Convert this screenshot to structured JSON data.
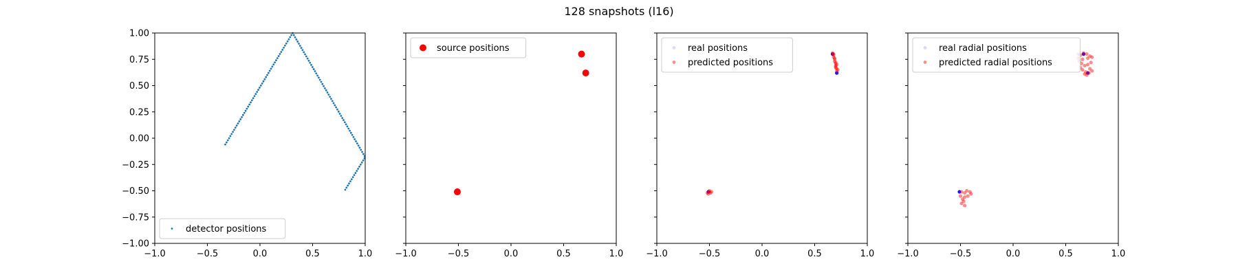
{
  "figure": {
    "title": "128 snapshots (l16)"
  },
  "chart_data": [
    {
      "type": "scatter",
      "xlim": [
        -1.0,
        1.0
      ],
      "ylim": [
        -1.0,
        1.0
      ],
      "x_ticks": [
        -1.0,
        -0.5,
        0.0,
        0.5,
        1.0
      ],
      "y_ticks": [
        -1.0,
        -0.75,
        -0.5,
        -0.25,
        0.0,
        0.25,
        0.5,
        0.75,
        1.0
      ],
      "x_tick_labels": [
        "−1.0",
        "−0.5",
        "0.0",
        "0.5",
        "1.0"
      ],
      "y_tick_labels": [
        "−1.00",
        "−0.75",
        "−0.50",
        "−0.25",
        "0.00",
        "0.25",
        "0.50",
        "0.75",
        "1.00"
      ],
      "legend_position": "lower-left",
      "series": [
        {
          "name": "detector positions",
          "color": "#1f77b4",
          "marker": "small-dot",
          "path_vertices": [
            [
              -0.33,
              -0.06
            ],
            [
              0.31,
              1.0
            ],
            [
              1.0,
              -0.18
            ],
            [
              0.81,
              -0.49
            ]
          ],
          "point_count": 128
        }
      ]
    },
    {
      "type": "scatter",
      "xlim": [
        -1.0,
        1.0
      ],
      "ylim": [
        -1.0,
        1.0
      ],
      "x_ticks": [
        -1.0,
        -0.5,
        0.0,
        0.5,
        1.0
      ],
      "x_tick_labels": [
        "−1.0",
        "−0.5",
        "0.0",
        "0.5",
        "1.0"
      ],
      "legend_position": "upper-left",
      "series": [
        {
          "name": "source positions",
          "color": "#ff0000",
          "marker": "large-dot",
          "points": [
            [
              -0.51,
              -0.51
            ],
            [
              0.67,
              0.8
            ],
            [
              0.71,
              0.62
            ]
          ]
        }
      ]
    },
    {
      "type": "scatter",
      "xlim": [
        -1.0,
        1.0
      ],
      "ylim": [
        -1.0,
        1.0
      ],
      "x_ticks": [
        -1.0,
        -0.5,
        0.0,
        0.5,
        1.0
      ],
      "x_tick_labels": [
        "−1.0",
        "−0.5",
        "0.0",
        "0.5",
        "1.0"
      ],
      "legend_position": "upper-left",
      "series": [
        {
          "name": "real positions",
          "color": "#0000ff",
          "points": [
            [
              -0.51,
              -0.51
            ],
            [
              0.67,
              0.8
            ],
            [
              0.71,
              0.62
            ]
          ]
        },
        {
          "name": "predicted positions",
          "color": "#ff0000",
          "points": [
            [
              -0.52,
              -0.52
            ],
            [
              -0.5,
              -0.51
            ],
            [
              -0.49,
              -0.52
            ],
            [
              -0.51,
              -0.53
            ],
            [
              -0.5,
              -0.5
            ],
            [
              -0.48,
              -0.51
            ],
            [
              0.67,
              0.81
            ],
            [
              0.68,
              0.79
            ],
            [
              0.68,
              0.77
            ],
            [
              0.69,
              0.75
            ],
            [
              0.69,
              0.73
            ],
            [
              0.7,
              0.71
            ],
            [
              0.7,
              0.69
            ],
            [
              0.7,
              0.68
            ],
            [
              0.71,
              0.66
            ],
            [
              0.71,
              0.64
            ],
            [
              0.72,
              0.65
            ],
            [
              0.69,
              0.76
            ],
            [
              0.7,
              0.72
            ],
            [
              0.71,
              0.7
            ],
            [
              0.68,
              0.8
            ],
            [
              0.7,
              0.67
            ]
          ]
        }
      ]
    },
    {
      "type": "scatter",
      "xlim": [
        -1.0,
        1.0
      ],
      "ylim": [
        -1.0,
        1.0
      ],
      "x_ticks": [
        -1.0,
        -0.5,
        0.0,
        0.5,
        1.0
      ],
      "x_tick_labels": [
        "−1.0",
        "−0.5",
        "0.0",
        "0.5",
        "1.0"
      ],
      "legend_position": "upper-left",
      "series": [
        {
          "name": "real radial positions",
          "color": "#0000ff",
          "points": [
            [
              -0.51,
              -0.51
            ],
            [
              0.67,
              0.8
            ],
            [
              0.71,
              0.62
            ]
          ]
        },
        {
          "name": "predicted radial positions",
          "color": "#ff0000",
          "points": [
            [
              -0.49,
              -0.51
            ],
            [
              -0.46,
              -0.52
            ],
            [
              -0.44,
              -0.5
            ],
            [
              -0.41,
              -0.51
            ],
            [
              -0.4,
              -0.53
            ],
            [
              -0.43,
              -0.55
            ],
            [
              -0.46,
              -0.56
            ],
            [
              -0.48,
              -0.58
            ],
            [
              -0.47,
              -0.6
            ],
            [
              -0.49,
              -0.62
            ],
            [
              -0.46,
              -0.64
            ],
            [
              -0.5,
              -0.55
            ],
            [
              0.62,
              0.8
            ],
            [
              0.64,
              0.79
            ],
            [
              0.67,
              0.81
            ],
            [
              0.7,
              0.8
            ],
            [
              0.73,
              0.78
            ],
            [
              0.75,
              0.77
            ],
            [
              0.71,
              0.76
            ],
            [
              0.66,
              0.75
            ],
            [
              0.63,
              0.73
            ],
            [
              0.65,
              0.71
            ],
            [
              0.68,
              0.69
            ],
            [
              0.71,
              0.7
            ],
            [
              0.74,
              0.72
            ],
            [
              0.64,
              0.67
            ],
            [
              0.66,
              0.65
            ],
            [
              0.69,
              0.63
            ],
            [
              0.72,
              0.62
            ],
            [
              0.75,
              0.64
            ],
            [
              0.7,
              0.6
            ],
            [
              0.68,
              0.61
            ],
            [
              0.73,
              0.66
            ],
            [
              0.62,
              0.76
            ]
          ]
        }
      ]
    }
  ]
}
